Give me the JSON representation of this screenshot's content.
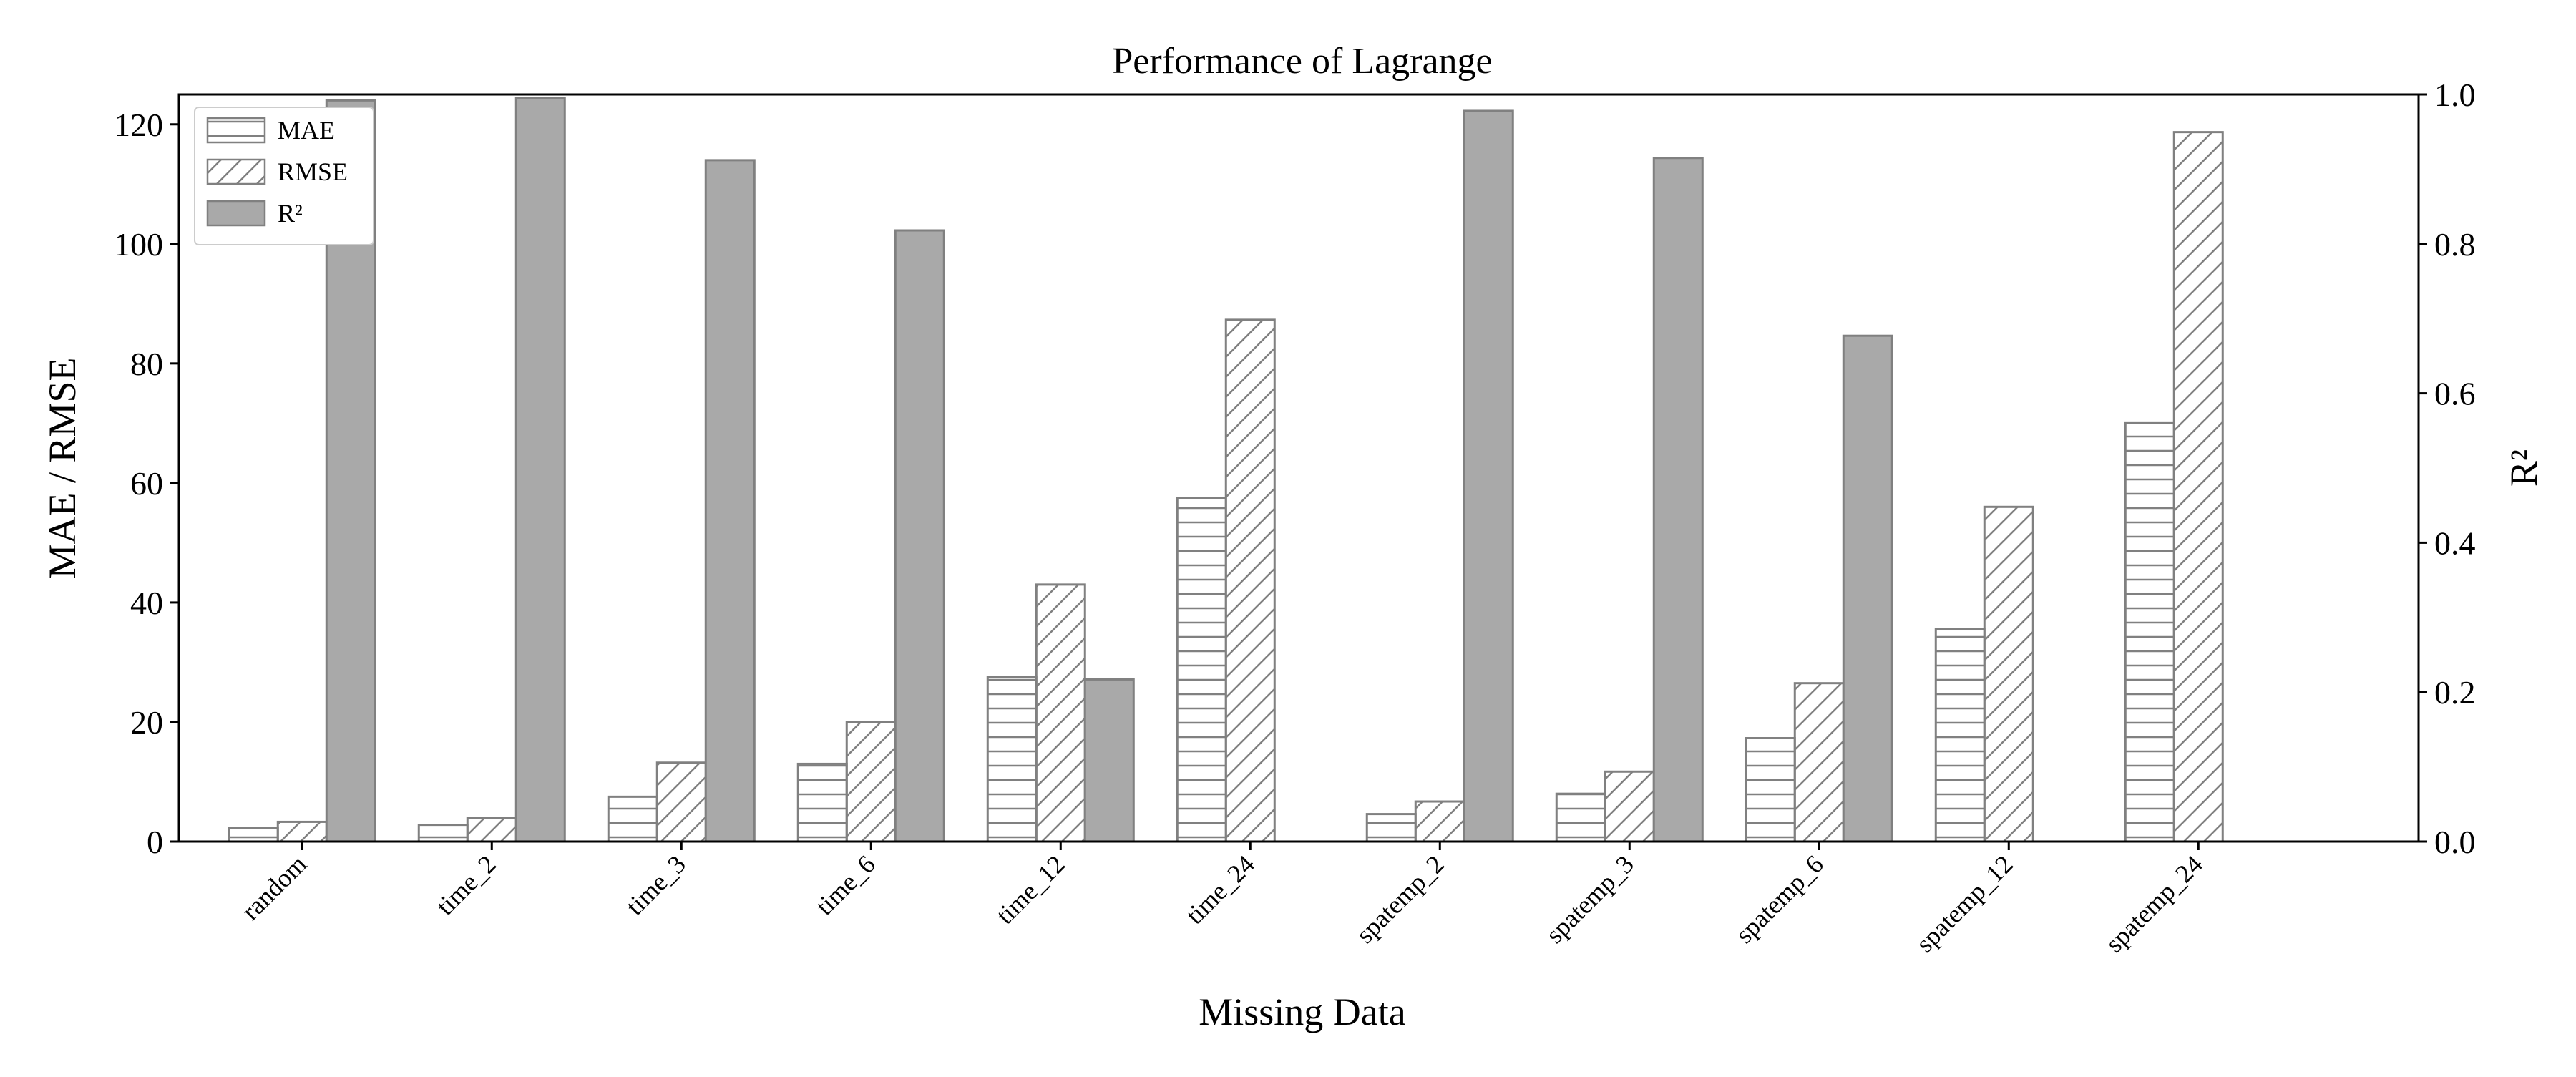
{
  "chart_data": {
    "type": "bar",
    "title": "Performance of Lagrange",
    "xlabel": "Missing Data",
    "ylabel_left": "MAE / RMSE",
    "ylabel_right": "R²",
    "ylim_left": [
      0,
      125
    ],
    "ylim_right": [
      0,
      1.0
    ],
    "yticks_left": [
      "0",
      "20",
      "40",
      "60",
      "80",
      "100",
      "120"
    ],
    "yticks_right": [
      "0.0",
      "0.2",
      "0.4",
      "0.6",
      "0.8",
      "1.0"
    ],
    "categories": [
      "random",
      "time_2",
      "time_3",
      "time_6",
      "time_12",
      "time_24",
      "spatemp_2",
      "spatemp_3",
      "spatemp_6",
      "spatemp_12",
      "spatemp_24"
    ],
    "series": [
      {
        "name": "MAE",
        "axis": "left",
        "values": [
          2.3,
          2.8,
          7.5,
          13.0,
          27.5,
          57.5,
          4.6,
          8.0,
          17.3,
          35.5,
          70.0
        ]
      },
      {
        "name": "RMSE",
        "axis": "left",
        "values": [
          3.3,
          4.0,
          13.2,
          20.0,
          43.0,
          87.3,
          6.7,
          11.7,
          26.5,
          56.0,
          118.7
        ]
      },
      {
        "name": "R²",
        "axis": "right",
        "values": [
          0.992,
          0.995,
          0.912,
          0.818,
          0.217,
          0.0,
          0.978,
          0.915,
          0.677,
          0.0,
          0.0
        ]
      }
    ],
    "legend_position": "top-left",
    "grid": false,
    "colors": {
      "bar_edge": "#808080",
      "r2_fill": "#a9a9a9",
      "hatch": "#808080"
    }
  }
}
